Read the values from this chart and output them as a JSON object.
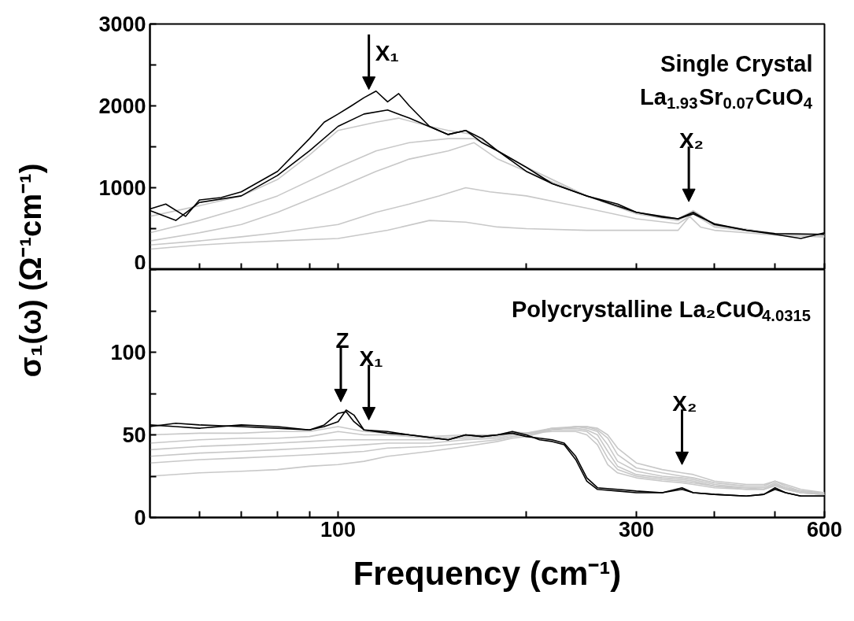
{
  "chart_data": [
    {
      "type": "line",
      "ylabel": "σ₁(ω) (Ω⁻¹cm⁻¹)",
      "log": "x",
      "xlim": [
        50,
        600
      ],
      "xticks": [
        {
          "value": 60,
          "label": null
        },
        {
          "value": 70,
          "label": null
        },
        {
          "value": 80,
          "label": null
        },
        {
          "value": 90,
          "label": null
        },
        100,
        {
          "value": 200,
          "label": null
        },
        300,
        {
          "value": 400,
          "label": null
        },
        {
          "value": 500,
          "label": null
        },
        600
      ],
      "ylim": [
        0,
        3000
      ],
      "yticks": [
        0,
        {
          "value": 500,
          "label": null
        },
        1000,
        {
          "value": 1500,
          "label": null
        },
        2000,
        {
          "value": 2500,
          "label": null
        },
        3000
      ],
      "tick_labels": "y",
      "grid": false,
      "annotations": [
        "Single Crystal",
        "La$_{1.93}$Sr$_{0.07}$CuO$_{4}$",
        "X₁",
        "X₂"
      ],
      "series": [
        {
          "color": "#c8c8c8",
          "x": [
            50,
            60,
            70,
            80,
            100,
            120,
            140,
            160,
            180,
            200,
            250,
            300,
            350,
            365,
            380,
            400,
            450,
            500,
            600
          ],
          "values": [
            250,
            300,
            330,
            350,
            380,
            480,
            600,
            580,
            520,
            500,
            480,
            480,
            480,
            650,
            520,
            480,
            450,
            420,
            400
          ]
        },
        {
          "color": "#c8c8c8",
          "x": [
            50,
            60,
            70,
            80,
            100,
            115,
            130,
            145,
            160,
            175,
            200,
            250,
            300,
            350,
            370,
            400,
            500,
            600
          ],
          "values": [
            300,
            350,
            400,
            450,
            550,
            700,
            800,
            900,
            1000,
            950,
            900,
            750,
            620,
            560,
            680,
            520,
            430,
            400
          ]
        },
        {
          "color": "#c8c8c8",
          "x": [
            50,
            60,
            70,
            80,
            100,
            115,
            130,
            150,
            165,
            180,
            200,
            250,
            300,
            350,
            370,
            400,
            500,
            600
          ],
          "values": [
            350,
            450,
            550,
            700,
            1000,
            1200,
            1350,
            1450,
            1550,
            1350,
            1200,
            900,
            680,
            600,
            700,
            540,
            430,
            420
          ]
        },
        {
          "color": "#c8c8c8",
          "x": [
            50,
            60,
            70,
            80,
            100,
            115,
            130,
            150,
            165,
            180,
            200,
            250,
            300,
            350,
            370,
            400,
            500,
            600
          ],
          "values": [
            450,
            600,
            750,
            900,
            1250,
            1450,
            1550,
            1600,
            1600,
            1450,
            1250,
            900,
            700,
            600,
            720,
            550,
            440,
            430
          ]
        },
        {
          "color": "#c8c8c8",
          "x": [
            50,
            60,
            70,
            80,
            90,
            100,
            115,
            125,
            140,
            150,
            165,
            180,
            200,
            250,
            300,
            350,
            370,
            400,
            500,
            600
          ],
          "values": [
            650,
            780,
            900,
            1100,
            1400,
            1700,
            1800,
            1850,
            1750,
            1700,
            1650,
            1450,
            1250,
            900,
            700,
            620,
            720,
            550,
            440,
            420
          ]
        },
        {
          "color": "#000000",
          "x": [
            50,
            55,
            60,
            70,
            80,
            90,
            100,
            110,
            120,
            130,
            150,
            160,
            170,
            180,
            200,
            220,
            250,
            300,
            350,
            370,
            400,
            450,
            500,
            600
          ],
          "values": [
            720,
            600,
            820,
            900,
            1150,
            1450,
            1750,
            1900,
            1950,
            1850,
            1650,
            1700,
            1600,
            1450,
            1250,
            1050,
            900,
            700,
            620,
            680,
            560,
            480,
            440,
            430
          ]
        },
        {
          "color": "#000000",
          "x": [
            50,
            53,
            57,
            60,
            65,
            70,
            80,
            90,
            95,
            100,
            105,
            110,
            115,
            120,
            125,
            130,
            140,
            150,
            160,
            170,
            180,
            200,
            220,
            250,
            280,
            300,
            330,
            350,
            370,
            380,
            400,
            450,
            500,
            550,
            600
          ],
          "values": [
            740,
            800,
            650,
            850,
            880,
            950,
            1200,
            1600,
            1800,
            1900,
            2000,
            2100,
            2180,
            2050,
            2150,
            2000,
            1750,
            1650,
            1700,
            1550,
            1450,
            1200,
            1050,
            900,
            800,
            700,
            640,
            620,
            700,
            650,
            550,
            480,
            430,
            380,
            450
          ]
        }
      ]
    },
    {
      "type": "line",
      "xlabel": "Frequency (cm⁻¹)",
      "log": "x",
      "xlim": [
        50,
        600
      ],
      "xticks": [
        {
          "value": 60,
          "label": null
        },
        {
          "value": 70,
          "label": null
        },
        {
          "value": 80,
          "label": null
        },
        {
          "value": 90,
          "label": null
        },
        100,
        {
          "value": 200,
          "label": null
        },
        300,
        {
          "value": 400,
          "label": null
        },
        {
          "value": 500,
          "label": null
        },
        600
      ],
      "ylim": [
        0,
        150
      ],
      "yticks": [
        0,
        {
          "value": 25,
          "label": null
        },
        50,
        {
          "value": 75,
          "label": null
        },
        100,
        {
          "value": 125,
          "label": null
        },
        {
          "value": 150,
          "label": null
        }
      ],
      "grid": false,
      "annotations": [
        "Polycrystalline La₂CuO$_{4.0315}$",
        "Z",
        "X₁",
        "X₂"
      ],
      "series": [
        {
          "color": "#c8c8c8",
          "x": [
            50,
            60,
            70,
            80,
            90,
            100,
            110,
            120,
            140,
            160,
            180,
            190,
            200,
            220,
            240,
            250,
            260,
            270,
            280,
            300,
            330,
            355,
            370,
            400,
            450,
            480,
            500,
            520,
            550,
            600
          ],
          "values": [
            25,
            27,
            28,
            29,
            31,
            32,
            34,
            37,
            40,
            43,
            46,
            48,
            49,
            53,
            55,
            55,
            54,
            50,
            42,
            33,
            29,
            27,
            26,
            22,
            20,
            20,
            22,
            20,
            17,
            15
          ]
        },
        {
          "color": "#c8c8c8",
          "x": [
            50,
            60,
            70,
            80,
            90,
            100,
            110,
            120,
            140,
            160,
            180,
            190,
            200,
            220,
            240,
            250,
            260,
            270,
            280,
            300,
            330,
            355,
            370,
            400,
            450,
            480,
            500,
            520,
            550,
            600
          ],
          "values": [
            33,
            35,
            36,
            37,
            38,
            39,
            40,
            42,
            43,
            45,
            47,
            49,
            50,
            53,
            55,
            55,
            53,
            48,
            38,
            30,
            27,
            25,
            24,
            21,
            19,
            19,
            22,
            19,
            16,
            15
          ]
        },
        {
          "color": "#c8c8c8",
          "x": [
            50,
            60,
            70,
            80,
            90,
            100,
            110,
            120,
            140,
            160,
            180,
            190,
            200,
            220,
            240,
            250,
            260,
            270,
            280,
            300,
            330,
            355,
            370,
            400,
            450,
            480,
            500,
            520,
            550,
            600
          ],
          "values": [
            37,
            39,
            40,
            41,
            42,
            43,
            44,
            45,
            45,
            47,
            48,
            50,
            50,
            54,
            55,
            54,
            52,
            44,
            34,
            28,
            25,
            24,
            23,
            20,
            18,
            18,
            21,
            18,
            16,
            14
          ]
        },
        {
          "color": "#c8c8c8",
          "x": [
            50,
            60,
            70,
            80,
            90,
            100,
            110,
            120,
            140,
            160,
            180,
            190,
            200,
            220,
            240,
            250,
            260,
            270,
            280,
            300,
            330,
            355,
            370,
            400,
            450,
            480,
            500,
            520,
            550,
            600
          ],
          "values": [
            41,
            43,
            44,
            45,
            46,
            47,
            47,
            47,
            47,
            48,
            49,
            51,
            51,
            54,
            54,
            53,
            50,
            40,
            31,
            26,
            24,
            23,
            22,
            19,
            18,
            17,
            20,
            18,
            15,
            14
          ]
        },
        {
          "color": "#c8c8c8",
          "x": [
            50,
            60,
            70,
            80,
            90,
            100,
            110,
            120,
            140,
            160,
            180,
            190,
            200,
            220,
            240,
            250,
            260,
            270,
            280,
            300,
            330,
            355,
            370,
            400,
            450,
            480,
            500,
            520,
            550,
            600
          ],
          "values": [
            45,
            47,
            48,
            48,
            49,
            52,
            50,
            50,
            48,
            49,
            50,
            51,
            51,
            53,
            53,
            52,
            47,
            36,
            29,
            25,
            23,
            22,
            21,
            19,
            17,
            17,
            20,
            17,
            15,
            14
          ]
        },
        {
          "color": "#c8c8c8",
          "x": [
            50,
            60,
            70,
            80,
            90,
            100,
            110,
            120,
            140,
            160,
            180,
            190,
            200,
            220,
            240,
            250,
            260,
            270,
            280,
            300,
            330,
            355,
            370,
            400,
            450,
            480,
            500,
            520,
            550,
            600
          ],
          "values": [
            50,
            51,
            51,
            52,
            52,
            55,
            52,
            51,
            49,
            50,
            50,
            52,
            51,
            52,
            52,
            50,
            44,
            32,
            27,
            24,
            22,
            21,
            20,
            18,
            17,
            17,
            19,
            17,
            15,
            14
          ]
        },
        {
          "color": "#000000",
          "x": [
            50,
            55,
            60,
            70,
            80,
            90,
            95,
            100,
            103,
            106,
            110,
            120,
            130,
            150,
            160,
            170,
            180,
            190,
            200,
            210,
            220,
            230,
            240,
            250,
            260,
            280,
            300,
            330,
            355,
            370,
            400,
            450,
            480,
            500,
            520,
            550,
            600
          ],
          "values": [
            56,
            55,
            54,
            56,
            55,
            53,
            55,
            58,
            65,
            62,
            53,
            51,
            50,
            47,
            50,
            49,
            50,
            51,
            49,
            48,
            47,
            45,
            37,
            24,
            18,
            17,
            16,
            15,
            17,
            15,
            14,
            13,
            14,
            17,
            15,
            13,
            13
          ]
        },
        {
          "color": "#000000",
          "x": [
            50,
            55,
            60,
            70,
            80,
            90,
            95,
            100,
            103,
            106,
            110,
            120,
            130,
            150,
            160,
            170,
            180,
            190,
            200,
            210,
            220,
            230,
            240,
            250,
            260,
            280,
            300,
            330,
            355,
            370,
            400,
            450,
            480,
            500,
            520,
            550,
            600
          ],
          "values": [
            55,
            57,
            56,
            55,
            54,
            53,
            56,
            63,
            64,
            58,
            53,
            52,
            50,
            47,
            50,
            49,
            50,
            52,
            50,
            47,
            46,
            44,
            35,
            22,
            17,
            16,
            15,
            15,
            18,
            15,
            14,
            13,
            14,
            18,
            15,
            13,
            13
          ]
        }
      ]
    }
  ]
}
